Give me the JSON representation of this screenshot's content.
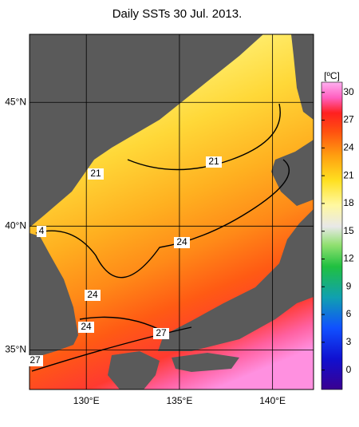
{
  "title": "Daily SSTs 30 Jul. 2013.",
  "map": {
    "lonlim": [
      126.95,
      142.2
    ],
    "latlim": [
      33.4,
      47.75
    ],
    "lonticks": [
      {
        "value": 130,
        "label": "130°E"
      },
      {
        "value": 135,
        "label": "135°E"
      },
      {
        "value": 140,
        "label": "140°E"
      }
    ],
    "latticks": [
      {
        "value": 35,
        "label": "35°N"
      },
      {
        "value": 40,
        "label": "40°N"
      },
      {
        "value": 45,
        "label": "45°N"
      }
    ]
  },
  "colorbar": {
    "label": "[ºC]",
    "range": [
      -2.1,
      31.1
    ],
    "ticks": [
      0,
      3,
      6,
      9,
      12,
      15,
      18,
      21,
      24,
      27,
      30
    ]
  },
  "contour_labels": [
    "21",
    "21",
    "24",
    "24",
    "24",
    "27",
    "27",
    "4"
  ]
}
